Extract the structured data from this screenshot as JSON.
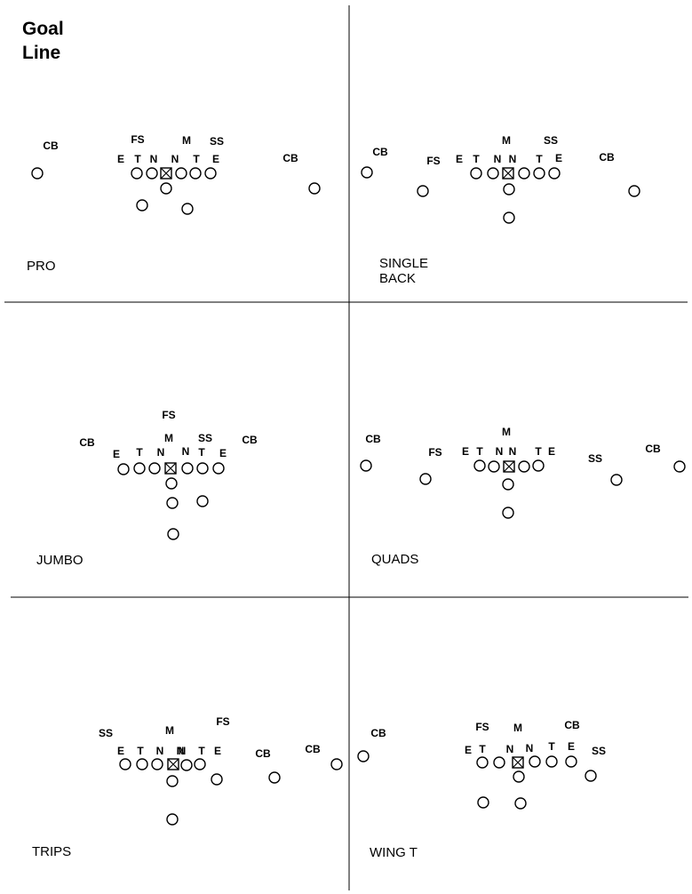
{
  "title": [
    "Goal",
    "Line"
  ],
  "formations": [
    {
      "name": [
        "PRO"
      ],
      "labels": [
        "CB",
        "FS",
        "M",
        "SS",
        "E",
        "T",
        "N",
        "N",
        "T",
        "E",
        "CB"
      ]
    },
    {
      "name": [
        "SINGLE",
        "BACK"
      ],
      "labels": [
        "CB",
        "FS",
        "E",
        "T",
        "N",
        "N",
        "M",
        "SS",
        "T",
        "E",
        "CB"
      ]
    },
    {
      "name": [
        "JUMBO"
      ],
      "labels": [
        "FS",
        "CB",
        "E",
        "T",
        "N",
        "M",
        "N",
        "SS",
        "T",
        "E",
        "CB"
      ]
    },
    {
      "name": [
        "QUADS"
      ],
      "labels": [
        "CB",
        "FS",
        "E",
        "T",
        "N",
        "N",
        "M",
        "T",
        "E",
        "SS",
        "CB"
      ]
    },
    {
      "name": [
        "TRIPS"
      ],
      "labels": [
        "SS",
        "E",
        "T",
        "N",
        "M",
        "N",
        "N",
        "T",
        "E",
        "FS",
        "CB",
        "CB"
      ]
    },
    {
      "name": [
        "WING T"
      ],
      "labels": [
        "CB",
        "FS",
        "M",
        "CB",
        "E",
        "T",
        "N",
        "N",
        "T",
        "E",
        "SS"
      ]
    }
  ]
}
